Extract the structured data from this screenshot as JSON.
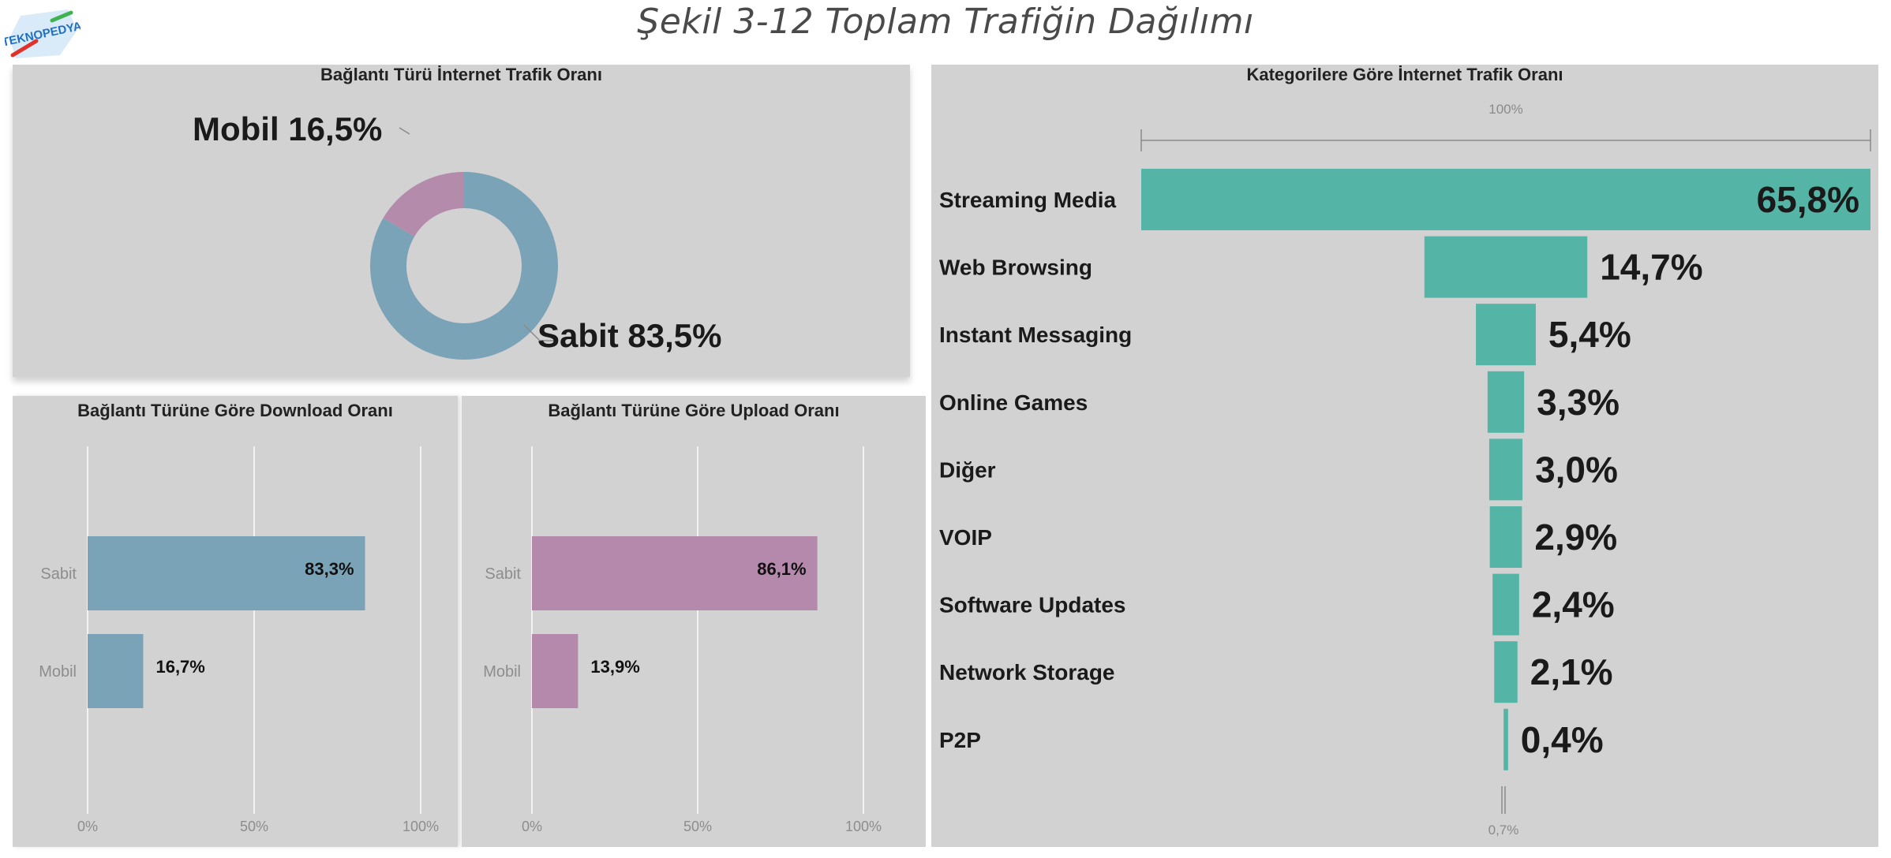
{
  "page": {
    "title": "Şekil 3-12 Toplam Trafiğin Dağılımı",
    "logo_text": "TEKNOPEDYA"
  },
  "colors": {
    "panel_bg": "#d2d2d2",
    "sabit_blue": "#7ba3b7",
    "mobil_pink": "#b58bac",
    "upload_pink": "#b589ac",
    "category_teal": "#54b5a7"
  },
  "chart_data": [
    {
      "type": "pie",
      "donut": true,
      "title": "Bağlantı Türü İnternet Trafik Oranı",
      "slices": [
        {
          "name": "Sabit",
          "value": 83.5,
          "label": "Sabit 83,5%"
        },
        {
          "name": "Mobil",
          "value": 16.5,
          "label": "Mobil 16,5%"
        }
      ]
    },
    {
      "type": "bar",
      "orientation": "horizontal",
      "title": "Bağlantı Türüne Göre Download Oranı",
      "categories": [
        "Sabit",
        "Mobil"
      ],
      "values": [
        83.3,
        16.7
      ],
      "value_labels": [
        "83,3%",
        "16,7%"
      ],
      "xlim": [
        0,
        100
      ],
      "xticks": [
        "0%",
        "50%",
        "100%"
      ],
      "grid": true
    },
    {
      "type": "bar",
      "orientation": "horizontal",
      "title": "Bağlantı Türüne Göre Upload Oranı",
      "categories": [
        "Sabit",
        "Mobil"
      ],
      "values": [
        86.1,
        13.9
      ],
      "value_labels": [
        "86,1%",
        "13,9%"
      ],
      "xlim": [
        0,
        100
      ],
      "xticks": [
        "0%",
        "50%",
        "100%"
      ],
      "grid": true
    },
    {
      "type": "bar",
      "orientation": "horizontal",
      "style": "funnel",
      "title": "Kategorilere Göre İnternet Trafik Oranı",
      "top_scale_label": "100%",
      "bottom_scale_label": "0,7%",
      "categories": [
        "Streaming Media",
        "Web Browsing",
        "Instant Messaging",
        "Online Games",
        "Diğer",
        "VOIP",
        "Software Updates",
        "Network Storage",
        "P2P"
      ],
      "values": [
        65.8,
        14.7,
        5.4,
        3.3,
        3.0,
        2.9,
        2.4,
        2.1,
        0.4
      ],
      "value_labels": [
        "65,8%",
        "14,7%",
        "5,4%",
        "3,3%",
        "3,0%",
        "2,9%",
        "2,4%",
        "2,1%",
        "0,4%"
      ]
    }
  ]
}
